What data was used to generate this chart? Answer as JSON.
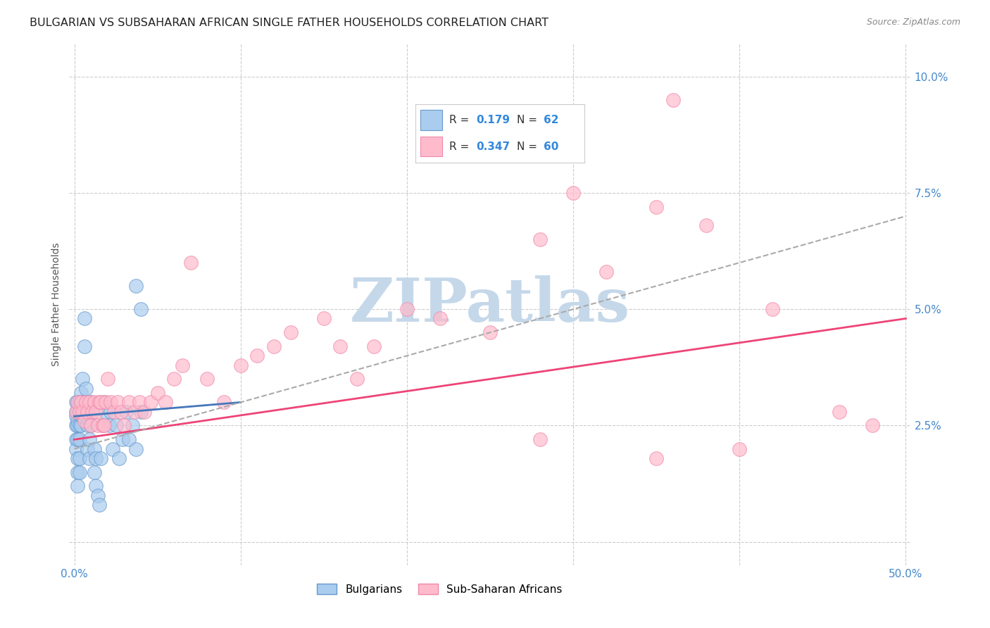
{
  "title": "BULGARIAN VS SUBSAHARAN AFRICAN SINGLE FATHER HOUSEHOLDS CORRELATION CHART",
  "source": "Source: ZipAtlas.com",
  "ylabel": "Single Father Households",
  "xlim": [
    -0.003,
    0.503
  ],
  "ylim": [
    -0.005,
    0.107
  ],
  "xticks": [
    0.0,
    0.1,
    0.2,
    0.3,
    0.4,
    0.5
  ],
  "xtick_labels_show": [
    "0.0%",
    "",
    "",
    "",
    "",
    "50.0%"
  ],
  "yticks": [
    0.0,
    0.025,
    0.05,
    0.075,
    0.1
  ],
  "ytick_labels": [
    "",
    "2.5%",
    "5.0%",
    "7.5%",
    "10.0%"
  ],
  "bg_color": "#ffffff",
  "grid_color": "#cccccc",
  "title_color": "#222222",
  "tick_color": "#4488cc",
  "watermark_text": "ZIPatlas",
  "watermark_color": "#c5d8ea",
  "bulgarian_color": "#aaccee",
  "bulgarian_edge": "#6699cc",
  "subsaharan_color": "#ffbbcc",
  "subsaharan_edge": "#ee88aa",
  "bulgarian_line_color": "#4477bb",
  "subsaharan_line_color": "#ee4477",
  "overall_line_color": "#aaaaaa",
  "legend_val_color": "#3388dd",
  "legend_label_color": "#333333",
  "bulgarian_scatter_x": [
    0.001,
    0.001,
    0.001,
    0.001,
    0.001,
    0.001,
    0.002,
    0.002,
    0.002,
    0.002,
    0.002,
    0.002,
    0.002,
    0.002,
    0.003,
    0.003,
    0.003,
    0.003,
    0.003,
    0.003,
    0.004,
    0.004,
    0.004,
    0.004,
    0.005,
    0.005,
    0.005,
    0.006,
    0.006,
    0.007,
    0.007,
    0.007,
    0.008,
    0.008,
    0.009,
    0.009,
    0.01,
    0.01,
    0.011,
    0.012,
    0.012,
    0.013,
    0.013,
    0.014,
    0.015,
    0.016,
    0.017,
    0.018,
    0.019,
    0.021,
    0.022,
    0.023,
    0.025,
    0.027,
    0.029,
    0.031,
    0.033,
    0.035,
    0.037,
    0.04,
    0.037,
    0.04
  ],
  "bulgarian_scatter_y": [
    0.025,
    0.027,
    0.028,
    0.03,
    0.022,
    0.02,
    0.026,
    0.028,
    0.03,
    0.022,
    0.025,
    0.018,
    0.015,
    0.012,
    0.028,
    0.03,
    0.025,
    0.022,
    0.018,
    0.015,
    0.032,
    0.03,
    0.027,
    0.025,
    0.035,
    0.03,
    0.027,
    0.048,
    0.042,
    0.033,
    0.03,
    0.027,
    0.025,
    0.02,
    0.022,
    0.018,
    0.03,
    0.025,
    0.028,
    0.02,
    0.015,
    0.018,
    0.012,
    0.01,
    0.008,
    0.018,
    0.025,
    0.03,
    0.028,
    0.025,
    0.028,
    0.02,
    0.025,
    0.018,
    0.022,
    0.028,
    0.022,
    0.025,
    0.02,
    0.028,
    0.055,
    0.05
  ],
  "subsaharan_scatter_x": [
    0.001,
    0.002,
    0.003,
    0.004,
    0.005,
    0.006,
    0.007,
    0.008,
    0.009,
    0.01,
    0.011,
    0.012,
    0.013,
    0.014,
    0.015,
    0.016,
    0.017,
    0.018,
    0.019,
    0.02,
    0.022,
    0.024,
    0.026,
    0.028,
    0.03,
    0.033,
    0.036,
    0.039,
    0.042,
    0.046,
    0.05,
    0.055,
    0.06,
    0.065,
    0.07,
    0.08,
    0.09,
    0.1,
    0.11,
    0.12,
    0.13,
    0.15,
    0.16,
    0.17,
    0.18,
    0.2,
    0.22,
    0.25,
    0.28,
    0.3,
    0.32,
    0.35,
    0.38,
    0.42,
    0.46,
    0.48,
    0.36,
    0.4,
    0.28,
    0.35
  ],
  "subsaharan_scatter_y": [
    0.028,
    0.03,
    0.028,
    0.03,
    0.028,
    0.026,
    0.03,
    0.028,
    0.03,
    0.025,
    0.028,
    0.03,
    0.028,
    0.025,
    0.03,
    0.03,
    0.025,
    0.025,
    0.03,
    0.035,
    0.03,
    0.028,
    0.03,
    0.028,
    0.025,
    0.03,
    0.028,
    0.03,
    0.028,
    0.03,
    0.032,
    0.03,
    0.035,
    0.038,
    0.06,
    0.035,
    0.03,
    0.038,
    0.04,
    0.042,
    0.045,
    0.048,
    0.042,
    0.035,
    0.042,
    0.05,
    0.048,
    0.045,
    0.065,
    0.075,
    0.058,
    0.072,
    0.068,
    0.05,
    0.028,
    0.025,
    0.095,
    0.02,
    0.022,
    0.018
  ]
}
